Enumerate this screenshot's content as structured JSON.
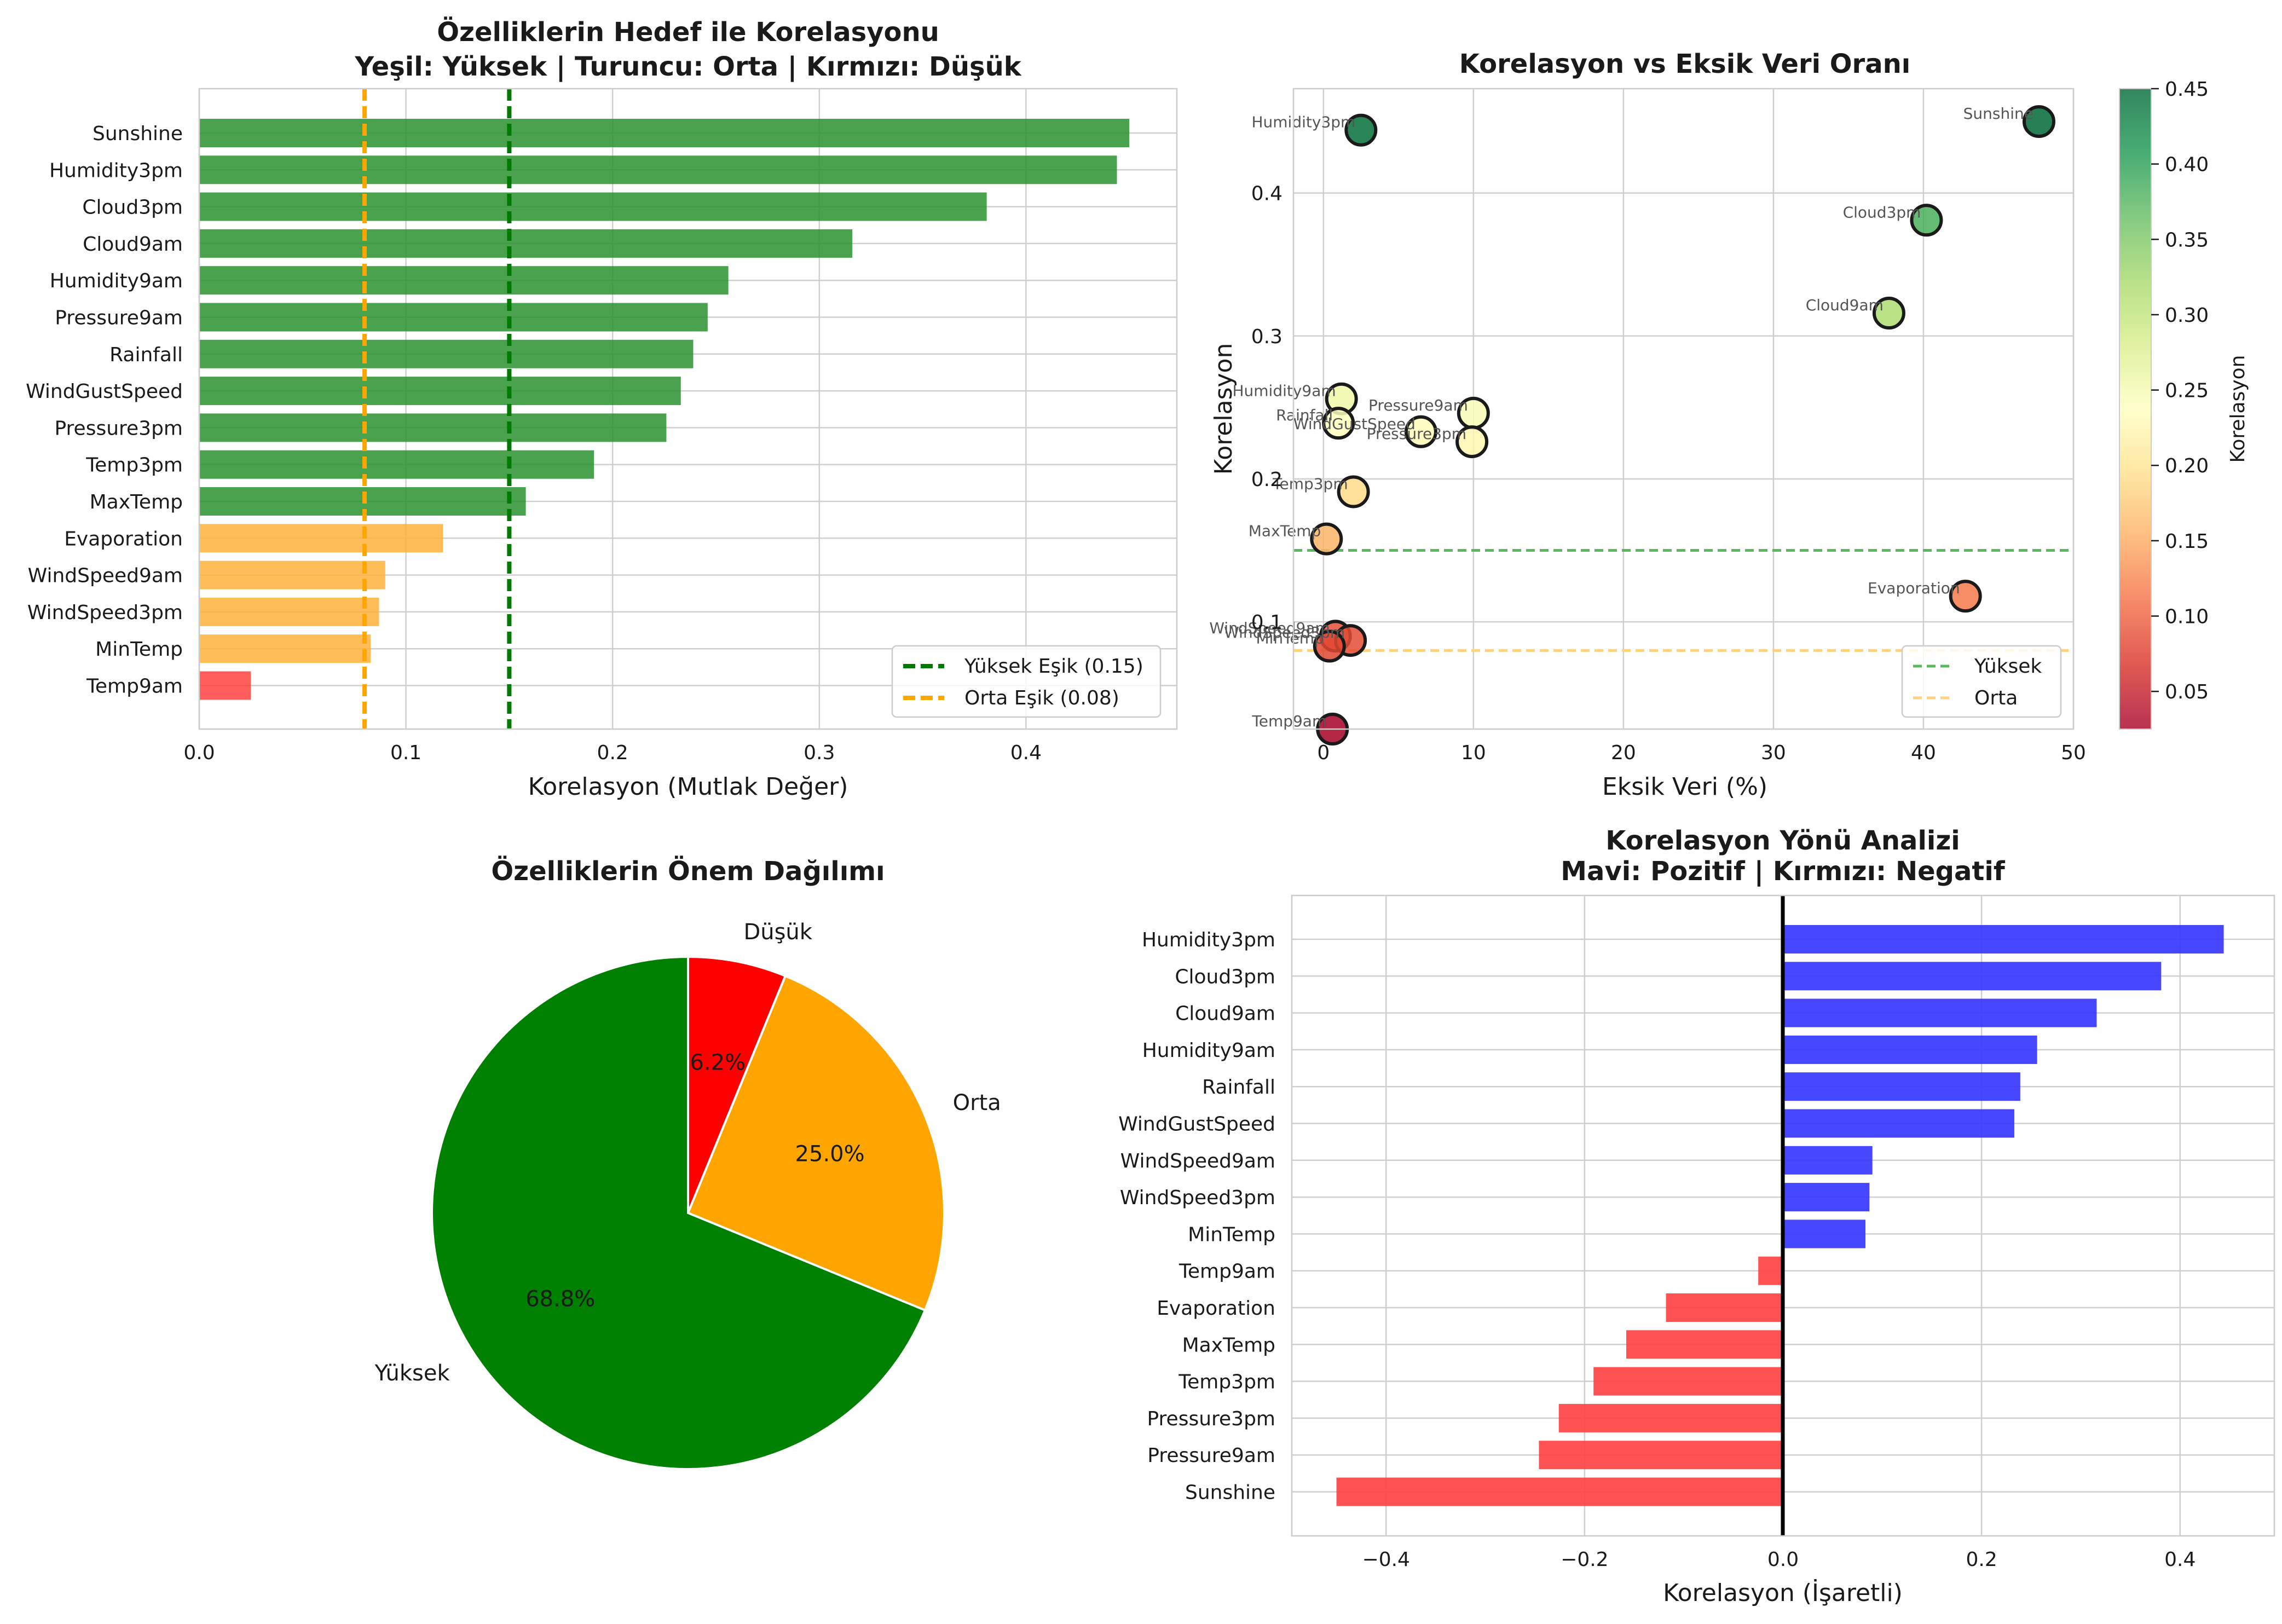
{
  "colors": {
    "high": "#2a922f",
    "medium": "#ffb13b",
    "low": "#ff4040",
    "positive": "#3333ff",
    "negative": "#ff4040",
    "pie_high": "#008000",
    "pie_medium": "#ffa500",
    "pie_low": "#ff0000",
    "threshold_high": "#007a00",
    "threshold_medium": "#ffa500"
  },
  "chart_data": [
    {
      "type": "bar",
      "orientation": "horizontal",
      "title": "Özelliklerin Hedef ile Korelasyonu",
      "subtitle": "Yeşil: Yüksek | Turuncu: Orta | Kırmızı: Düşük",
      "xlabel": "Korelasyon (Mutlak Değer)",
      "ylabel": "",
      "xlim": [
        0,
        0.473
      ],
      "xticks": [
        "0.0",
        "0.1",
        "0.2",
        "0.3",
        "0.4"
      ],
      "categories": [
        "Sunshine",
        "Humidity3pm",
        "Cloud3pm",
        "Cloud9am",
        "Humidity9am",
        "Pressure9am",
        "Rainfall",
        "WindGustSpeed",
        "Pressure3pm",
        "Temp3pm",
        "MaxTemp",
        "Evaporation",
        "WindSpeed9am",
        "WindSpeed3pm",
        "MinTemp",
        "Temp9am"
      ],
      "values": [
        0.45,
        0.444,
        0.381,
        0.316,
        0.256,
        0.246,
        0.239,
        0.233,
        0.226,
        0.191,
        0.158,
        0.118,
        0.09,
        0.087,
        0.083,
        0.025
      ],
      "levels": [
        "high",
        "high",
        "high",
        "high",
        "high",
        "high",
        "high",
        "high",
        "high",
        "high",
        "high",
        "medium",
        "medium",
        "medium",
        "medium",
        "low"
      ],
      "thresholds": [
        {
          "label": "Yüksek Eşik (0.15)",
          "value": 0.15,
          "color": "#007a00"
        },
        {
          "label": "Orta Eşik (0.08)",
          "value": 0.08,
          "color": "#ffa500"
        }
      ],
      "legend": "bottom-right",
      "grid": true
    },
    {
      "type": "scatter",
      "title": "Korelasyon vs Eksik Veri Oranı",
      "xlabel": "Eksik Veri (%)",
      "ylabel": "Korelasyon",
      "xlim": [
        -2,
        50
      ],
      "ylim": [
        0.025,
        0.473
      ],
      "xticks": [
        "0",
        "10",
        "20",
        "30",
        "40",
        "50"
      ],
      "yticks": [
        "0.1",
        "0.2",
        "0.3",
        "0.4"
      ],
      "points": [
        {
          "label": "Sunshine",
          "x": 47.7,
          "y": 0.45
        },
        {
          "label": "Humidity3pm",
          "x": 2.5,
          "y": 0.444
        },
        {
          "label": "Cloud3pm",
          "x": 40.2,
          "y": 0.381
        },
        {
          "label": "Cloud9am",
          "x": 37.7,
          "y": 0.316
        },
        {
          "label": "Humidity9am",
          "x": 1.2,
          "y": 0.256
        },
        {
          "label": "Pressure9am",
          "x": 10.0,
          "y": 0.246
        },
        {
          "label": "Rainfall",
          "x": 1.0,
          "y": 0.239
        },
        {
          "label": "WindGustSpeed",
          "x": 6.5,
          "y": 0.233
        },
        {
          "label": "Pressure3pm",
          "x": 9.9,
          "y": 0.226
        },
        {
          "label": "Temp3pm",
          "x": 2.0,
          "y": 0.191
        },
        {
          "label": "MaxTemp",
          "x": 0.2,
          "y": 0.158
        },
        {
          "label": "Evaporation",
          "x": 42.8,
          "y": 0.118
        },
        {
          "label": "WindSpeed9am",
          "x": 0.8,
          "y": 0.09
        },
        {
          "label": "WindSpeed3pm",
          "x": 1.8,
          "y": 0.087
        },
        {
          "label": "MinTemp",
          "x": 0.4,
          "y": 0.083
        },
        {
          "label": "Temp9am",
          "x": 0.6,
          "y": 0.025
        }
      ],
      "reference_lines": [
        {
          "label": "Yüksek",
          "value": 0.15,
          "color": "#5cb85c"
        },
        {
          "label": "Orta",
          "value": 0.08,
          "color": "#ffd27f"
        }
      ],
      "colorbar": {
        "label": "Korelasyon",
        "min": 0.025,
        "max": 0.45,
        "ticks": [
          "0.05",
          "0.10",
          "0.15",
          "0.20",
          "0.25",
          "0.30",
          "0.35",
          "0.40",
          "0.45"
        ],
        "colormap": "RdYlGn"
      },
      "legend": "bottom-right",
      "grid": true
    },
    {
      "type": "pie",
      "title": "Özelliklerin Önem Dağılımı",
      "slices": [
        {
          "label": "Düşük",
          "value": 6.2,
          "pct_label": "6.2%"
        },
        {
          "label": "Orta",
          "value": 25.0,
          "pct_label": "25.0%"
        },
        {
          "label": "Yüksek",
          "value": 68.8,
          "pct_label": "68.8%"
        }
      ]
    },
    {
      "type": "bar",
      "orientation": "horizontal",
      "title": "Korelasyon Yönü Analizi",
      "subtitle": "Mavi: Pozitif | Kırmızı: Negatif",
      "xlabel": "Korelasyon (İşaretli)",
      "ylabel": "",
      "xlim": [
        -0.495,
        0.495
      ],
      "xticks": [
        "−0.4",
        "−0.2",
        "0.0",
        "0.2",
        "0.4"
      ],
      "categories": [
        "Humidity3pm",
        "Cloud3pm",
        "Cloud9am",
        "Humidity9am",
        "Rainfall",
        "WindGustSpeed",
        "WindSpeed9am",
        "WindSpeed3pm",
        "MinTemp",
        "Temp9am",
        "Evaporation",
        "MaxTemp",
        "Temp3pm",
        "Pressure3pm",
        "Pressure9am",
        "Sunshine"
      ],
      "values": [
        0.444,
        0.381,
        0.316,
        0.256,
        0.239,
        0.233,
        0.09,
        0.087,
        0.083,
        -0.025,
        -0.118,
        -0.158,
        -0.191,
        -0.226,
        -0.246,
        -0.45
      ],
      "grid": true
    }
  ]
}
